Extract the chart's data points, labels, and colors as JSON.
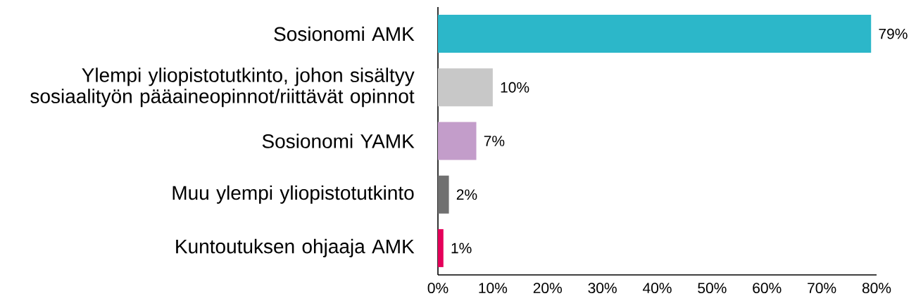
{
  "chart_data": {
    "type": "bar",
    "orientation": "horizontal",
    "categories": [
      "Sosionomi AMK",
      "Ylempi yliopistotutkinto, johon sisältyy sosiaalityön pääaineopinnot/riittävät opinnot",
      "Sosionomi YAMK",
      "Muu ylempi yliopistotutkinto",
      "Kuntoutuksen ohjaaja AMK"
    ],
    "values": [
      79,
      10,
      7,
      2,
      1
    ],
    "colors": [
      "#2cb7c9",
      "#c8c8c8",
      "#c39dca",
      "#707070",
      "#e5005a"
    ],
    "value_labels": [
      "79%",
      "10%",
      "7%",
      "2%",
      "1%"
    ],
    "xlim": [
      0,
      80
    ],
    "xticks": [
      {
        "value": 0,
        "label": "0%"
      },
      {
        "value": 10,
        "label": "10%"
      },
      {
        "value": 20,
        "label": "20%"
      },
      {
        "value": 30,
        "label": "30%"
      },
      {
        "value": 40,
        "label": "40%"
      },
      {
        "value": 50,
        "label": "50%"
      },
      {
        "value": 60,
        "label": "60%"
      },
      {
        "value": 70,
        "label": "70%"
      },
      {
        "value": 80,
        "label": "80%"
      }
    ]
  }
}
